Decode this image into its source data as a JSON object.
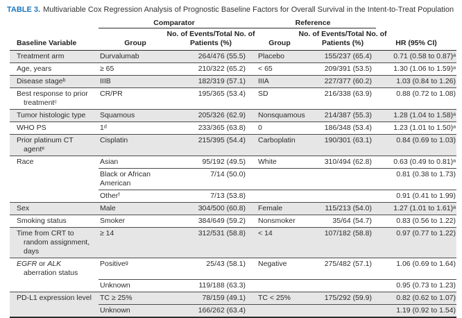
{
  "title": {
    "label": "TABLE 3.",
    "text": "Multivariable Cox Regression Analysis of Prognostic Baseline Factors for Overall Survival in the Intent-to-Treat Population"
  },
  "columns": {
    "comparator": "Comparator",
    "reference": "Reference",
    "baseline_variable": "Baseline Variable",
    "group": "Group",
    "events_line1": "No. of Events/Total No. of",
    "events_line2": "Patients (%)",
    "hr": "HR (95% CI)"
  },
  "colors": {
    "row_shade": "#e6e6e6",
    "title_accent": "#1b75bc",
    "rule": "#2b2b2b"
  },
  "rows": [
    {
      "variable": "Treatment arm",
      "group": "Durvalumab",
      "events": "264/476 (55.5)",
      "ref_group": "Placebo",
      "ref_events": "155/237 (65.4)",
      "hr": "0.71 (0.58 to 0.87)ᵃ",
      "shaded": true,
      "cont": false
    },
    {
      "variable": "Age, years",
      "group": "≥ 65",
      "events": "210/322 (65.2)",
      "ref_group": "< 65",
      "ref_events": "209/391 (53.5)",
      "hr": "1.30 (1.06 to 1.59)ᵃ",
      "shaded": false,
      "cont": false
    },
    {
      "variable": "Disease stageᵇ",
      "group": "IIIB",
      "events": "182/319 (57.1)",
      "ref_group": "IIIA",
      "ref_events": "227/377 (60.2)",
      "hr": "1.03 (0.84 to 1.26)",
      "shaded": true,
      "cont": false
    },
    {
      "variable": "Best response to prior treatmentᶜ",
      "group": "CR/PR",
      "events": "195/365 (53.4)",
      "ref_group": "SD",
      "ref_events": "216/338 (63.9)",
      "hr": "0.88 (0.72 to 1.08)",
      "shaded": false,
      "cont": false
    },
    {
      "variable": "Tumor histologic type",
      "group": "Squamous",
      "events": "205/326 (62.9)",
      "ref_group": "Nonsquamous",
      "ref_events": "214/387 (55.3)",
      "hr": "1.28 (1.04 to 1.58)ᵃ",
      "shaded": true,
      "cont": false
    },
    {
      "variable": "WHO PS",
      "group": "1ᵈ",
      "events": "233/365 (63.8)",
      "ref_group": "0",
      "ref_events": "186/348 (53.4)",
      "hr": "1.23 (1.01 to 1.50)ᵃ",
      "shaded": false,
      "cont": false
    },
    {
      "variable": "Prior platinum CT agentᵉ",
      "group": "Cisplatin",
      "events": "215/395 (54.4)",
      "ref_group": "Carboplatin",
      "ref_events": "190/301 (63.1)",
      "hr": "0.84 (0.69 to 1.03)",
      "shaded": true,
      "cont": false
    },
    {
      "variable": "Race",
      "group": "Asian",
      "events": "95/192 (49.5)",
      "ref_group": "White",
      "ref_events": "310/494 (62.8)",
      "hr": "0.63 (0.49 to 0.81)ᵃ",
      "shaded": false,
      "cont": false
    },
    {
      "variable": "",
      "group": "Black or African American",
      "events": "7/14 (50.0)",
      "ref_group": "",
      "ref_events": "",
      "hr": "0.81 (0.38 to 1.73)",
      "shaded": false,
      "cont": true
    },
    {
      "variable": "",
      "group": "Otherᶠ",
      "events": "7/13 (53.8)",
      "ref_group": "",
      "ref_events": "",
      "hr": "0.91 (0.41 to 1.99)",
      "shaded": false,
      "cont": true
    },
    {
      "variable": "Sex",
      "group": "Male",
      "events": "304/500 (60.8)",
      "ref_group": "Female",
      "ref_events": "115/213 (54.0)",
      "hr": "1.27 (1.01 to 1.61)ᵃ",
      "shaded": true,
      "cont": false
    },
    {
      "variable": "Smoking status",
      "group": "Smoker",
      "events": "384/649 (59.2)",
      "ref_group": "Nonsmoker",
      "ref_events": "35/64 (54.7)",
      "hr": "0.83 (0.56 to 1.22)",
      "shaded": false,
      "cont": false
    },
    {
      "variable": "Time from CRT to random assignment, days",
      "group": "≥ 14",
      "events": "312/531 (58.8)",
      "ref_group": "< 14",
      "ref_events": "107/182 (58.8)",
      "hr": "0.97 (0.77 to 1.22)",
      "shaded": true,
      "cont": false
    },
    {
      "variable_parts": [
        {
          "text": "EGFR",
          "italic": true
        },
        {
          "text": " or "
        },
        {
          "text": "ALK",
          "italic": true
        },
        {
          "text": " aberration status"
        }
      ],
      "group": "Positiveᵍ",
      "events": "25/43 (58.1)",
      "ref_group": "Negative",
      "ref_events": "275/482 (57.1)",
      "hr": "1.06 (0.69 to 1.64)",
      "shaded": false,
      "cont": false
    },
    {
      "variable": "",
      "group": "Unknown",
      "events": "119/188 (63.3)",
      "ref_group": "",
      "ref_events": "",
      "hr": "0.95 (0.73 to 1.23)",
      "shaded": false,
      "cont": true
    },
    {
      "variable": "PD-L1 expression level",
      "group": "TC ≥ 25%",
      "events": "78/159 (49.1)",
      "ref_group": "TC < 25%",
      "ref_events": "175/292 (59.9)",
      "hr": "0.82 (0.62 to 1.07)",
      "shaded": true,
      "cont": false
    },
    {
      "variable": "",
      "group": "Unknown",
      "events": "166/262 (63.4)",
      "ref_group": "",
      "ref_events": "",
      "hr": "1.19 (0.92 to 1.54)",
      "shaded": true,
      "cont": true
    }
  ]
}
